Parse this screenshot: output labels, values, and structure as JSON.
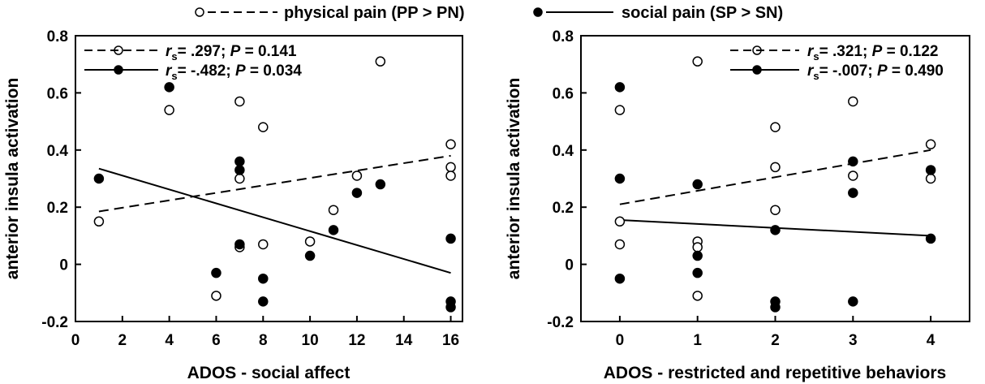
{
  "legend": {
    "physical_label": "physical pain (PP > PN)",
    "social_label": "social pain (SP > SN)"
  },
  "colors": {
    "physical_fill": "#ffffff",
    "social_fill": "#000000",
    "stroke": "#000000"
  },
  "chart_data": [
    {
      "type": "scatter",
      "xlabel": "ADOS - social affect",
      "ylabel": "anterior insula activation",
      "xlim": [
        0,
        16.5
      ],
      "ylim": [
        -0.2,
        0.8
      ],
      "xticks": [
        0,
        2,
        4,
        6,
        8,
        10,
        12,
        14,
        16
      ],
      "yticks": [
        -0.2,
        0,
        0.2,
        0.4,
        0.6,
        0.8
      ],
      "tick_labels_y": [
        "-0.2",
        "0",
        "0.2",
        "0.4",
        "0.6",
        "0.8"
      ],
      "stats": [
        {
          "series": "physical",
          "r": ".297",
          "p": "0.141"
        },
        {
          "series": "social",
          "r": "-.482",
          "p": "0.034"
        }
      ],
      "series": [
        {
          "marker": "open-circle",
          "points": [
            [
              1,
              0.15
            ],
            [
              4,
              0.54
            ],
            [
              7,
              0.57
            ],
            [
              7,
              0.3
            ],
            [
              7,
              0.06
            ],
            [
              6,
              -0.11
            ],
            [
              8,
              0.48
            ],
            [
              8,
              0.07
            ],
            [
              10,
              0.08
            ],
            [
              11,
              0.19
            ],
            [
              12,
              0.31
            ],
            [
              13,
              0.71
            ],
            [
              16,
              0.42
            ],
            [
              16,
              0.34
            ],
            [
              16,
              0.31
            ]
          ],
          "fit": [
            [
              1,
              0.185
            ],
            [
              16,
              0.38
            ]
          ],
          "line_style": "dashed"
        },
        {
          "marker": "filled-circle",
          "points": [
            [
              1,
              0.3
            ],
            [
              4,
              0.62
            ],
            [
              7,
              0.36
            ],
            [
              7,
              0.33
            ],
            [
              7,
              0.07
            ],
            [
              6,
              -0.03
            ],
            [
              8,
              -0.05
            ],
            [
              8,
              -0.13
            ],
            [
              10,
              0.03
            ],
            [
              11,
              0.12
            ],
            [
              12,
              0.25
            ],
            [
              13,
              0.28
            ],
            [
              16,
              0.09
            ],
            [
              16,
              -0.13
            ],
            [
              16,
              -0.15
            ]
          ],
          "fit": [
            [
              1,
              0.335
            ],
            [
              16,
              -0.03
            ]
          ],
          "line_style": "solid"
        }
      ]
    },
    {
      "type": "scatter",
      "xlabel": "ADOS - restricted and repetitive behaviors",
      "ylabel": "anterior insula activation",
      "xlim": [
        -0.5,
        4.5
      ],
      "ylim": [
        -0.2,
        0.8
      ],
      "xticks": [
        0,
        1,
        2,
        3,
        4
      ],
      "yticks": [
        -0.2,
        0,
        0.2,
        0.4,
        0.6,
        0.8
      ],
      "tick_labels_y": [
        "-0.2",
        "0",
        "0.2",
        "0.4",
        "0.6",
        "0.8"
      ],
      "stats": [
        {
          "series": "physical",
          "r": ".321",
          "p": "0.122"
        },
        {
          "series": "social",
          "r": "-.007",
          "p": "0.490"
        }
      ],
      "series": [
        {
          "marker": "open-circle",
          "points": [
            [
              0,
              0.54
            ],
            [
              0,
              0.15
            ],
            [
              0,
              0.07
            ],
            [
              1,
              0.71
            ],
            [
              1,
              0.08
            ],
            [
              1,
              0.06
            ],
            [
              1,
              -0.11
            ],
            [
              2,
              0.48
            ],
            [
              2,
              0.34
            ],
            [
              2,
              0.19
            ],
            [
              3,
              0.57
            ],
            [
              3,
              0.31
            ],
            [
              4,
              0.42
            ],
            [
              4,
              0.3
            ]
          ],
          "fit": [
            [
              0,
              0.21
            ],
            [
              4,
              0.4
            ]
          ],
          "line_style": "dashed"
        },
        {
          "marker": "filled-circle",
          "points": [
            [
              0,
              0.62
            ],
            [
              0,
              0.3
            ],
            [
              0,
              -0.05
            ],
            [
              1,
              0.28
            ],
            [
              1,
              0.03
            ],
            [
              1,
              -0.03
            ],
            [
              2,
              0.12
            ],
            [
              2,
              -0.13
            ],
            [
              2,
              -0.15
            ],
            [
              3,
              0.36
            ],
            [
              3,
              0.25
            ],
            [
              3,
              -0.13
            ],
            [
              4,
              0.33
            ],
            [
              4,
              0.09
            ]
          ],
          "fit": [
            [
              0,
              0.155
            ],
            [
              4,
              0.1
            ]
          ],
          "line_style": "solid"
        }
      ]
    }
  ]
}
